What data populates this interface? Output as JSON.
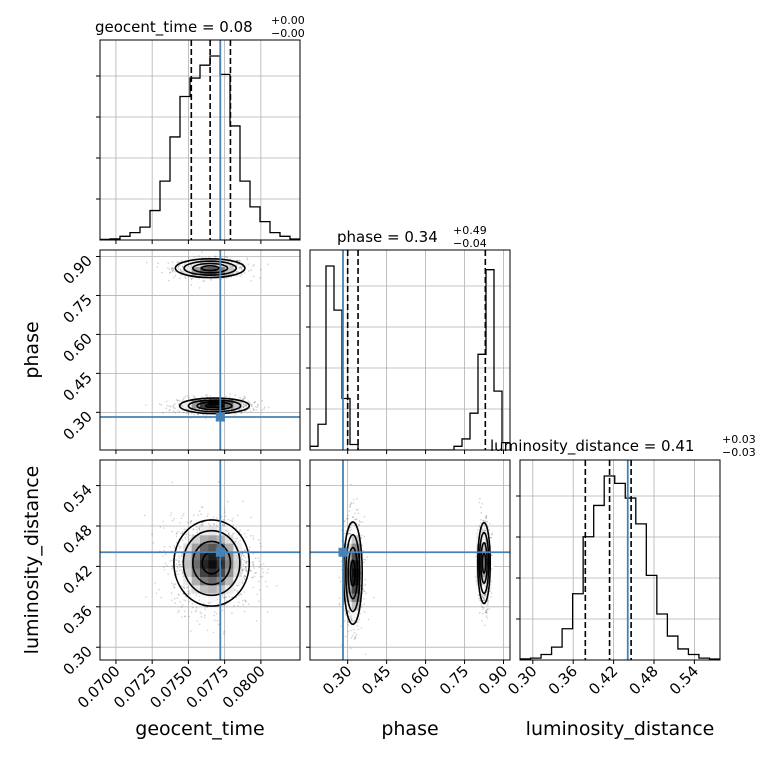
{
  "chart_data": {
    "type": "corner",
    "parameters": [
      "geocent_time",
      "phase",
      "luminosity_distance"
    ],
    "axis_labels": [
      "geocent_time",
      "phase",
      "luminosity_distance"
    ],
    "titles": [
      {
        "param": "geocent_time",
        "median": "0.08",
        "plus": "+0.00",
        "minus": "−0.00",
        "label": "geocent_time = 0.08"
      },
      {
        "param": "phase",
        "median": "0.34",
        "plus": "+0.49",
        "minus": "−0.04",
        "label": "phase = 0.34"
      },
      {
        "param": "luminosity_distance",
        "median": "0.41",
        "plus": "+0.03",
        "minus": "−0.03",
        "label": "luminosity_distance = 0.41"
      }
    ],
    "ranges": {
      "geocent_time": [
        0.0689,
        0.0827
      ],
      "phase": [
        0.155,
        0.925
      ],
      "luminosity_distance": [
        0.281,
        0.578
      ]
    },
    "ticks": {
      "geocent_time": [
        0.07,
        0.0725,
        0.075,
        0.0775,
        0.08
      ],
      "phase": [
        0.3,
        0.45,
        0.6,
        0.75,
        0.9
      ],
      "luminosity_distance": [
        0.3,
        0.36,
        0.42,
        0.48,
        0.54
      ]
    },
    "tick_labels": {
      "geocent_time": [
        "0.0700",
        "0.0725",
        "0.0750",
        "0.0775",
        "0.0800"
      ],
      "phase": [
        "0.30",
        "0.45",
        "0.60",
        "0.75",
        "0.90"
      ],
      "luminosity_distance": [
        "0.30",
        "0.36",
        "0.42",
        "0.48",
        "0.54"
      ]
    },
    "truths": {
      "geocent_time": 0.0772,
      "phase": 0.282,
      "luminosity_distance": 0.441
    },
    "quantiles": {
      "geocent_time": [
        0.0752,
        0.0765,
        0.0779
      ],
      "phase": [
        0.3,
        0.34,
        0.83
      ],
      "luminosity_distance": [
        0.378,
        0.414,
        0.446
      ]
    },
    "histograms": {
      "geocent_time": [
        0.3,
        0.6,
        2,
        4,
        7,
        16,
        32,
        56,
        78,
        88,
        95,
        100,
        90,
        62,
        32,
        18,
        10,
        4,
        2,
        0.5
      ],
      "phase": [
        2,
        14,
        100,
        76,
        28,
        3,
        0,
        0,
        0,
        0,
        0,
        0,
        0,
        0,
        0,
        0,
        0,
        0,
        2,
        6,
        20,
        52,
        98,
        32,
        4
      ],
      "luminosity_distance": [
        0.6,
        1,
        3,
        7,
        17,
        36,
        67,
        84,
        100,
        96,
        88,
        74,
        46,
        25,
        13,
        6,
        3,
        1,
        0.5
      ]
    },
    "modes": [
      {
        "pair": [
          "geocent_time",
          "phase"
        ],
        "center": [
          0.0765,
          0.855
        ],
        "spread": [
          0.0012,
          0.018
        ],
        "weight": 0.45
      },
      {
        "pair": [
          "geocent_time",
          "phase"
        ],
        "center": [
          0.0768,
          0.325
        ],
        "spread": [
          0.0012,
          0.015
        ],
        "weight": 0.55
      },
      {
        "pair": [
          "geocent_time",
          "luminosity_distance"
        ],
        "center": [
          0.0766,
          0.425
        ],
        "spread": [
          0.0013,
          0.032
        ],
        "weight": 1.0
      },
      {
        "pair": [
          "phase",
          "luminosity_distance"
        ],
        "center": [
          0.32,
          0.41
        ],
        "spread": [
          0.018,
          0.038
        ],
        "weight": 0.55
      },
      {
        "pair": [
          "phase",
          "luminosity_distance"
        ],
        "center": [
          0.825,
          0.425
        ],
        "spread": [
          0.012,
          0.03
        ],
        "weight": 0.45
      }
    ]
  }
}
